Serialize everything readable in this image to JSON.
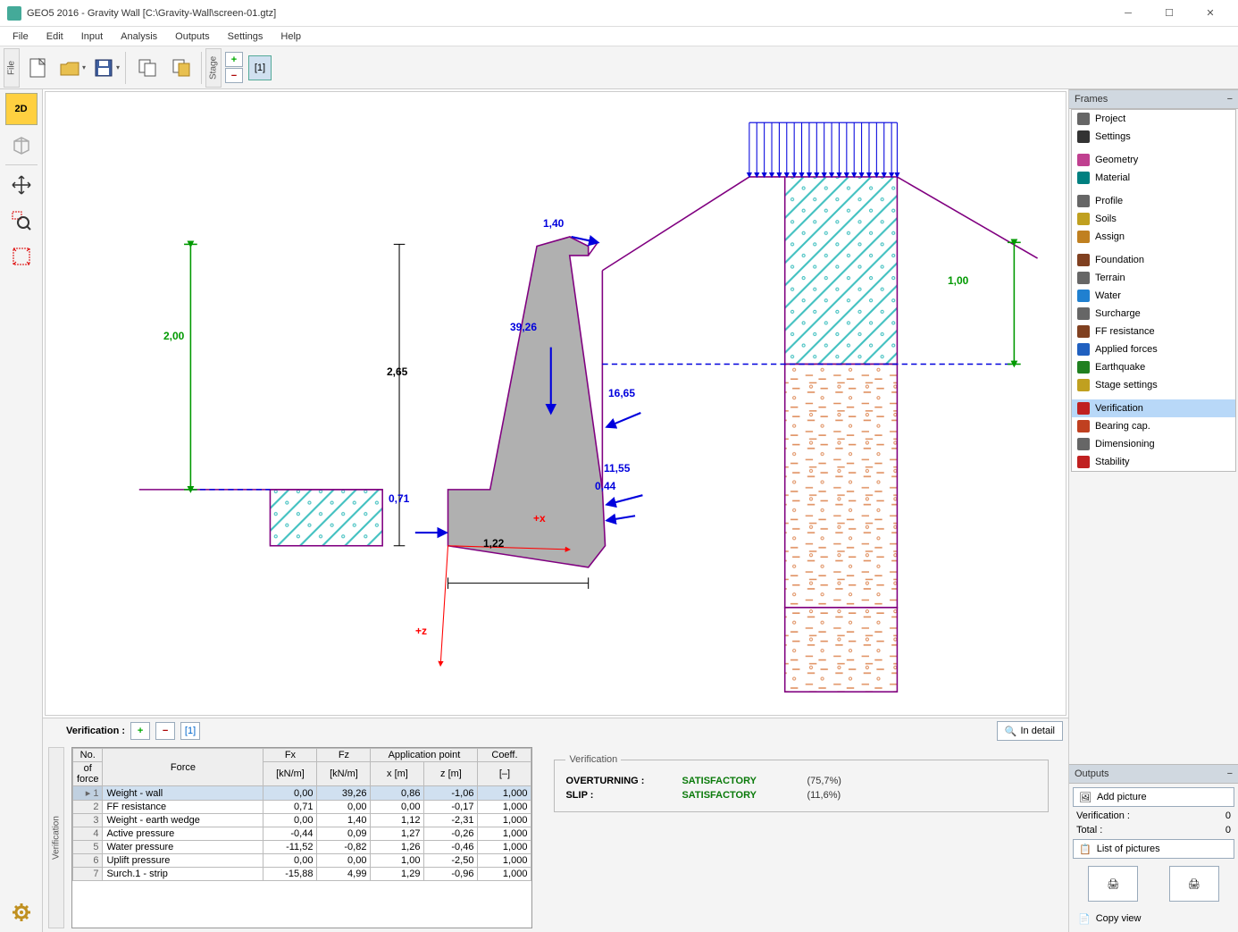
{
  "window": {
    "title": "GEO5 2016 - Gravity Wall [C:\\Gravity-Wall\\screen-01.gtz]"
  },
  "menu": [
    "File",
    "Edit",
    "Input",
    "Analysis",
    "Outputs",
    "Settings",
    "Help"
  ],
  "toolbar": {
    "file_tab": "File",
    "stage_tab": "Stage",
    "stage_current": "[1]"
  },
  "left_tools": {
    "t2d": "2D",
    "t3d": "3D"
  },
  "frames": {
    "header": "Frames",
    "items": [
      {
        "label": "Project",
        "icon": "#666"
      },
      {
        "label": "Settings",
        "icon": "#333"
      },
      {
        "gap": true
      },
      {
        "label": "Geometry",
        "icon": "#c04090"
      },
      {
        "label": "Material",
        "icon": "#008080"
      },
      {
        "gap": true
      },
      {
        "label": "Profile",
        "icon": "#666"
      },
      {
        "label": "Soils",
        "icon": "#c0a020"
      },
      {
        "label": "Assign",
        "icon": "#c08020"
      },
      {
        "gap": true
      },
      {
        "label": "Foundation",
        "icon": "#804020"
      },
      {
        "label": "Terrain",
        "icon": "#666"
      },
      {
        "label": "Water",
        "icon": "#2080d0"
      },
      {
        "label": "Surcharge",
        "icon": "#666"
      },
      {
        "label": "FF resistance",
        "icon": "#804020"
      },
      {
        "label": "Applied forces",
        "icon": "#2060c0"
      },
      {
        "label": "Earthquake",
        "icon": "#208020"
      },
      {
        "label": "Stage settings",
        "icon": "#c0a020"
      },
      {
        "gap": true
      },
      {
        "label": "Verification",
        "icon": "#c02020",
        "selected": true
      },
      {
        "label": "Bearing cap.",
        "icon": "#c04020"
      },
      {
        "label": "Dimensioning",
        "icon": "#666"
      },
      {
        "label": "Stability",
        "icon": "#c02020"
      }
    ]
  },
  "outputs": {
    "header": "Outputs",
    "add_picture": "Add picture",
    "verification_label": "Verification :",
    "verification_count": "0",
    "total_label": "Total :",
    "total_count": "0",
    "list_pictures": "List of pictures",
    "copy_view": "Copy view"
  },
  "bottom": {
    "side_label": "Verification",
    "header_label": "Verification :",
    "stage_current": "[1]",
    "detail_btn": "In detail"
  },
  "table": {
    "col_no1": "No.",
    "col_no2": "of force",
    "col_force": "Force",
    "col_fx": "Fx",
    "col_fx_unit": "[kN/m]",
    "col_fz": "Fz",
    "col_fz_unit": "[kN/m]",
    "col_app": "Application point",
    "col_x": "x [m]",
    "col_z": "z [m]",
    "col_coeff": "Coeff.",
    "col_coeff_unit": "[–]",
    "rows": [
      {
        "n": "1",
        "f": "Weight - wall",
        "fx": "0,00",
        "fz": "39,26",
        "x": "0,86",
        "z": "-1,06",
        "c": "1,000",
        "sel": true
      },
      {
        "n": "2",
        "f": "FF resistance",
        "fx": "0,71",
        "fz": "0,00",
        "x": "0,00",
        "z": "-0,17",
        "c": "1,000"
      },
      {
        "n": "3",
        "f": "Weight - earth wedge",
        "fx": "0,00",
        "fz": "1,40",
        "x": "1,12",
        "z": "-2,31",
        "c": "1,000"
      },
      {
        "n": "4",
        "f": "Active pressure",
        "fx": "-0,44",
        "fz": "0,09",
        "x": "1,27",
        "z": "-0,26",
        "c": "1,000"
      },
      {
        "n": "5",
        "f": "Water pressure",
        "fx": "-11,52",
        "fz": "-0,82",
        "x": "1,26",
        "z": "-0,46",
        "c": "1,000"
      },
      {
        "n": "6",
        "f": "Uplift pressure",
        "fx": "0,00",
        "fz": "0,00",
        "x": "1,00",
        "z": "-2,50",
        "c": "1,000"
      },
      {
        "n": "7",
        "f": "Surch.1 - strip",
        "fx": "-15,88",
        "fz": "4,99",
        "x": "1,29",
        "z": "-0,96",
        "c": "1,000"
      }
    ]
  },
  "verification": {
    "legend": "Verification",
    "overturning_k": "OVERTURNING :",
    "overturning_v": "SATISFACTORY",
    "overturning_p": "(75,7%)",
    "slip_k": "SLIP :",
    "slip_v": "SATISFACTORY",
    "slip_p": "(11,6%)"
  },
  "diagram": {
    "labels": {
      "h200": "2,00",
      "h265": "2,65",
      "h071": "0,71",
      "w122": "1,22",
      "h100": "1,00",
      "f3926": "39,26",
      "w140": "1,40",
      "f1665": "16,65",
      "f1155": "11,55",
      "f044": "0,44",
      "ax_x": "+x",
      "ax_z": "+z"
    },
    "colors": {
      "wall_fill": "#b0b0b0",
      "outline": "#800080",
      "dim_blue": "#0000dd",
      "dim_green": "#009900",
      "axis_red": "#ff0000",
      "teal": "#40c0c0",
      "orange": "#e09060"
    }
  }
}
